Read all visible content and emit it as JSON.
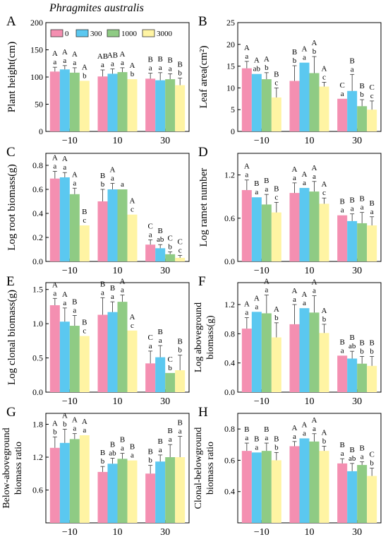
{
  "figure": {
    "title": "Phragmites australis",
    "legend": {
      "entries": [
        {
          "label": "0",
          "color": "#F48FB1"
        },
        {
          "label": "300",
          "color": "#5BC8F0"
        },
        {
          "label": "1000",
          "color": "#8FCB84"
        },
        {
          "label": "3000",
          "color": "#FFF4A3"
        }
      ]
    }
  },
  "chart_data": [
    {
      "panel": "A",
      "type": "bar",
      "ylabel": "Plant height(cm)",
      "ylim": [
        0,
        200
      ],
      "yticks": [
        0,
        50,
        100,
        150,
        200
      ],
      "categories": [
        "−10",
        "10",
        "30"
      ],
      "series": [
        {
          "name": "0",
          "color": "#F48FB1",
          "values": [
            110,
            101,
            97
          ],
          "errors": [
            8,
            12,
            10
          ]
        },
        {
          "name": "300",
          "color": "#5BC8F0",
          "values": [
            114,
            106,
            94
          ],
          "errors": [
            7,
            9,
            14
          ]
        },
        {
          "name": "1000",
          "color": "#8FCB84",
          "values": [
            108,
            109,
            96
          ],
          "errors": [
            9,
            8,
            10
          ]
        },
        {
          "name": "3000",
          "color": "#FFF4A3",
          "values": [
            93,
            96,
            85
          ],
          "errors": [
            0,
            0,
            13
          ]
        }
      ],
      "letters": [
        [
          [
            "A",
            "a"
          ],
          [
            "A",
            "a"
          ],
          [
            "A",
            "a"
          ],
          [
            "A",
            "b"
          ]
        ],
        [
          [
            "AB",
            "a"
          ],
          [
            "AB",
            "a"
          ],
          [
            "A",
            "a"
          ],
          [
            "A",
            "b"
          ]
        ],
        [
          [
            "B",
            "a"
          ],
          [
            "B",
            "a"
          ],
          [
            "B",
            "a"
          ],
          [
            "B",
            "b"
          ]
        ]
      ]
    },
    {
      "panel": "B",
      "type": "bar",
      "ylabel": "Leaf area(cm²)",
      "ylim": [
        0,
        25
      ],
      "yticks": [
        0,
        5,
        10,
        15,
        20,
        25
      ],
      "categories": [
        "−10",
        "10",
        "30"
      ],
      "series": [
        {
          "name": "0",
          "color": "#F48FB1",
          "values": [
            14.5,
            11.6,
            7.5
          ],
          "errors": [
            1.6,
            3.5,
            0
          ]
        },
        {
          "name": "300",
          "color": "#5BC8F0",
          "values": [
            13.2,
            15.8,
            9.3
          ],
          "errors": [
            0,
            0,
            3.8
          ]
        },
        {
          "name": "1000",
          "color": "#8FCB84",
          "values": [
            12.0,
            13.4,
            5.8
          ],
          "errors": [
            1.5,
            3.8,
            1.5
          ]
        },
        {
          "name": "3000",
          "color": "#FFF4A3",
          "values": [
            7.8,
            10.3,
            5.0
          ],
          "errors": [
            2.2,
            1.0,
            2.0
          ]
        }
      ],
      "letters": [
        [
          [
            "A",
            "a"
          ],
          [
            "A",
            "ab"
          ],
          [
            "A",
            "b"
          ],
          [
            "B",
            "c"
          ]
        ],
        [
          [
            "B",
            "b"
          ],
          [
            "A",
            "a"
          ],
          [
            "A",
            "b"
          ],
          [
            "A",
            "c"
          ]
        ],
        [
          [
            "C",
            "a"
          ],
          [
            "B",
            "a"
          ],
          [
            "B",
            "b"
          ],
          [
            "C",
            "c"
          ]
        ]
      ]
    },
    {
      "panel": "C",
      "type": "bar",
      "ylabel": "Log root biomass(g)",
      "ylim": [
        0,
        0.9
      ],
      "yticks": [
        0,
        0.2,
        0.4,
        0.6,
        0.8
      ],
      "categories": [
        "−10",
        "10",
        "30"
      ],
      "series": [
        {
          "name": "0",
          "color": "#F48FB1",
          "values": [
            0.69,
            0.5,
            0.14
          ],
          "errors": [
            0.06,
            0.1,
            0.04
          ]
        },
        {
          "name": "300",
          "color": "#5BC8F0",
          "values": [
            0.7,
            0.6,
            0.11
          ],
          "errors": [
            0.04,
            0.05,
            0.03
          ]
        },
        {
          "name": "1000",
          "color": "#8FCB84",
          "values": [
            0.56,
            0.6,
            0.06
          ],
          "errors": [
            0.05,
            0,
            0.02
          ]
        },
        {
          "name": "3000",
          "color": "#FFF4A3",
          "values": [
            0.3,
            0.39,
            0.03
          ],
          "errors": [
            0,
            0,
            0.02
          ]
        }
      ],
      "letters": [
        [
          [
            "A",
            "a"
          ],
          [
            "A",
            "a"
          ],
          [
            "A",
            "a"
          ],
          [
            "B",
            "c"
          ]
        ],
        [
          [
            "B",
            "b"
          ],
          [
            "A",
            "a"
          ],
          [
            "",
            "a"
          ],
          [
            "A",
            "c"
          ]
        ],
        [
          [
            "C",
            "a"
          ],
          [
            "B",
            "ab"
          ],
          [
            "C",
            "b"
          ],
          [
            "C",
            "c"
          ]
        ]
      ]
    },
    {
      "panel": "D",
      "type": "bar",
      "ylabel": "Log ramet number",
      "ylim": [
        0,
        1.5
      ],
      "yticks": [
        0,
        0.6,
        1.2
      ],
      "categories": [
        "−10",
        "10",
        "30"
      ],
      "series": [
        {
          "name": "0",
          "color": "#F48FB1",
          "values": [
            0.99,
            0.95,
            0.64
          ],
          "errors": [
            0.14,
            0.14,
            0
          ]
        },
        {
          "name": "300",
          "color": "#5BC8F0",
          "values": [
            0.89,
            1.02,
            0.56
          ],
          "errors": [
            0,
            0,
            0.1
          ]
        },
        {
          "name": "1000",
          "color": "#8FCB84",
          "values": [
            0.79,
            0.97,
            0.53
          ],
          "errors": [
            0.14,
            0.14,
            0.15
          ]
        },
        {
          "name": "3000",
          "color": "#FFF4A3",
          "values": [
            0.68,
            0.8,
            0.5
          ],
          "errors": [
            0.14,
            0.08,
            0.12
          ]
        }
      ],
      "letters": [
        [
          [
            "A",
            "a"
          ],
          [
            "B",
            "a"
          ],
          [
            "B",
            "a"
          ],
          [
            "B",
            "c"
          ]
        ],
        [
          [
            "A",
            "a"
          ],
          [
            "A",
            "a"
          ],
          [
            "A",
            "a"
          ],
          [
            "A",
            "c"
          ]
        ],
        [
          [
            "B",
            "a"
          ],
          [
            "B",
            "a"
          ],
          [
            "B",
            "a"
          ],
          [
            "B",
            "a"
          ]
        ]
      ]
    },
    {
      "panel": "E",
      "type": "bar",
      "ylabel": "Log clonal biomass(g)",
      "ylim": [
        0,
        1.6
      ],
      "yticks": [
        0,
        0.5,
        1.0,
        1.5
      ],
      "categories": [
        "−10",
        "10",
        "30"
      ],
      "series": [
        {
          "name": "0",
          "color": "#F48FB1",
          "values": [
            1.27,
            1.13,
            0.42
          ],
          "errors": [
            0.1,
            0.25,
            0.18
          ]
        },
        {
          "name": "300",
          "color": "#5BC8F0",
          "values": [
            1.03,
            1.17,
            0.51
          ],
          "errors": [
            0.2,
            0.15,
            0.17
          ]
        },
        {
          "name": "1000",
          "color": "#8FCB84",
          "values": [
            0.97,
            1.32,
            0.28
          ],
          "errors": [
            0.15,
            0.1,
            0
          ]
        },
        {
          "name": "3000",
          "color": "#FFF4A3",
          "values": [
            0.82,
            0.9,
            0.32
          ],
          "errors": [
            0,
            0,
            0.22
          ]
        }
      ],
      "letters": [
        [
          [
            "A",
            "a"
          ],
          [
            "A",
            "a"
          ],
          [
            "B",
            "a"
          ],
          [
            "B",
            "c"
          ]
        ],
        [
          [
            "B",
            "a"
          ],
          [
            "B",
            "a"
          ],
          [
            "A",
            "a"
          ],
          [
            "A",
            "c"
          ]
        ],
        [
          [
            "C",
            "a"
          ],
          [
            "B",
            "a"
          ],
          [
            "C",
            "b"
          ],
          [
            "B",
            "b"
          ]
        ]
      ]
    },
    {
      "panel": "F",
      "type": "bar",
      "ylabel": "Log aboveground biomass(g)",
      "ylim": [
        0,
        1.5
      ],
      "yticks": [
        0,
        0.4,
        0.8,
        1.2
      ],
      "categories": [
        "−10",
        "10",
        "30"
      ],
      "series": [
        {
          "name": "0",
          "color": "#F48FB1",
          "values": [
            0.87,
            0.93,
            0.5
          ],
          "errors": [
            0.15,
            0.27,
            0
          ]
        },
        {
          "name": "300",
          "color": "#5BC8F0",
          "values": [
            1.1,
            1.15,
            0.46
          ],
          "errors": [
            0,
            0,
            0.1
          ]
        },
        {
          "name": "1000",
          "color": "#8FCB84",
          "values": [
            1.08,
            1.09,
            0.39
          ],
          "errors": [
            0.25,
            0.23,
            0.1
          ]
        },
        {
          "name": "3000",
          "color": "#FFF4A3",
          "values": [
            0.75,
            0.81,
            0.36
          ],
          "errors": [
            0.2,
            0.12,
            0.13
          ]
        }
      ],
      "letters": [
        [
          [
            "A",
            "a"
          ],
          [
            "A",
            "a"
          ],
          [
            "A",
            "a"
          ],
          [
            "A",
            "b"
          ]
        ],
        [
          [
            "A",
            "a"
          ],
          [
            "A",
            "a"
          ],
          [
            "A",
            "a"
          ],
          [
            "A",
            "b"
          ]
        ],
        [
          [
            "B",
            "a"
          ],
          [
            "B",
            "ab"
          ],
          [
            "B",
            "b"
          ],
          [
            "B",
            "b"
          ]
        ]
      ]
    },
    {
      "panel": "G",
      "type": "bar",
      "ylabel": "Below-aboveground biomass ratio",
      "ylim": [
        0,
        2.0
      ],
      "yticks": [
        0.6,
        1.2,
        1.8
      ],
      "categories": [
        "−10",
        "10",
        "30"
      ],
      "series": [
        {
          "name": "0",
          "color": "#F48FB1",
          "values": [
            1.37,
            0.93,
            0.9
          ],
          "errors": [
            0.2,
            0.1,
            0.15
          ]
        },
        {
          "name": "300",
          "color": "#5BC8F0",
          "values": [
            1.46,
            1.08,
            1.12
          ],
          "errors": [
            0.25,
            0.1,
            0.12
          ]
        },
        {
          "name": "1000",
          "color": "#8FCB84",
          "values": [
            1.53,
            1.17,
            1.2
          ],
          "errors": [
            0.1,
            0.1,
            0.23
          ]
        },
        {
          "name": "3000",
          "color": "#FFF4A3",
          "values": [
            1.6,
            1.14,
            1.2
          ],
          "errors": [
            0,
            0,
            0.38
          ]
        }
      ],
      "letters": [
        [
          [
            "A",
            "b"
          ],
          [
            "A",
            "b"
          ],
          [
            "A",
            "a"
          ],
          [
            "A",
            "a"
          ]
        ],
        [
          [
            "B",
            "b"
          ],
          [
            "B",
            "ab"
          ],
          [
            "B",
            "a"
          ],
          [
            "B",
            "a"
          ]
        ],
        [
          [
            "B",
            "b"
          ],
          [
            "B",
            "a"
          ],
          [
            "B",
            "a"
          ],
          [
            "B",
            "a"
          ]
        ]
      ]
    },
    {
      "panel": "H",
      "type": "bar",
      "ylabel": "Clonal-belowground biomass ratio",
      "ylim": [
        0.2,
        0.9
      ],
      "yticks": [
        0.4,
        0.6,
        0.8
      ],
      "categories": [
        "−10",
        "10",
        "30"
      ],
      "series": [
        {
          "name": "0",
          "color": "#F48FB1",
          "values": [
            0.66,
            0.69,
            0.58
          ],
          "errors": [
            0.05,
            0.03,
            0.03
          ]
        },
        {
          "name": "300",
          "color": "#5BC8F0",
          "values": [
            0.65,
            0.74,
            0.53
          ],
          "errors": [
            0,
            0,
            0.05
          ]
        },
        {
          "name": "1000",
          "color": "#8FCB84",
          "values": [
            0.66,
            0.72,
            0.57
          ],
          "errors": [
            0.05,
            0.05,
            0.02
          ]
        },
        {
          "name": "3000",
          "color": "#FFF4A3",
          "values": [
            0.6,
            0.66,
            0.5
          ],
          "errors": [
            0.05,
            0.03,
            0.05
          ]
        }
      ],
      "letters": [
        [
          [
            "B",
            "a"
          ],
          [
            "B",
            "a"
          ],
          [
            "B",
            "a"
          ],
          [
            "B",
            "b"
          ]
        ],
        [
          [
            "A",
            "a"
          ],
          [
            "A",
            "a"
          ],
          [
            "A",
            "a"
          ],
          [
            "A",
            "b"
          ]
        ],
        [
          [
            "B",
            "a"
          ],
          [
            "B",
            "ab"
          ],
          [
            "B",
            "a"
          ],
          [
            "C",
            "b"
          ]
        ]
      ]
    }
  ]
}
